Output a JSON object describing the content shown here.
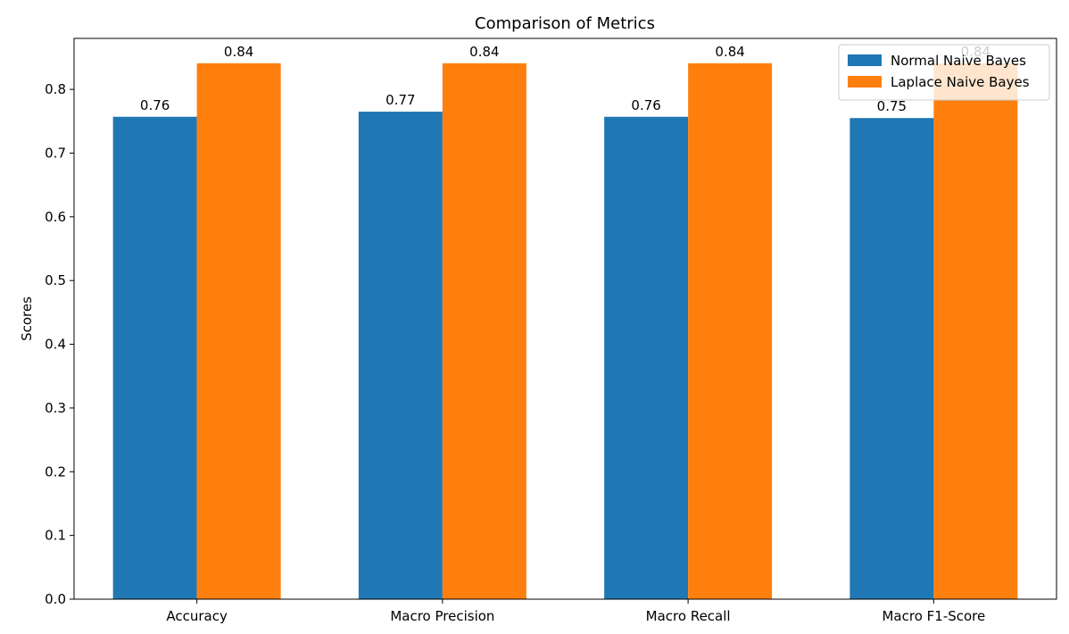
{
  "chart_data": {
    "type": "bar",
    "title": "Comparison of Metrics",
    "xlabel": "",
    "ylabel": "Scores",
    "categories": [
      "Accuracy",
      "Macro Precision",
      "Macro Recall",
      "Macro F1-Score"
    ],
    "series": [
      {
        "name": "Normal Naive Bayes",
        "color": "#1f77b4",
        "values": [
          0.757,
          0.765,
          0.757,
          0.755
        ],
        "labels": [
          "0.76",
          "0.77",
          "0.76",
          "0.75"
        ]
      },
      {
        "name": "Laplace Naive Bayes",
        "color": "#ff7f0e",
        "values": [
          0.841,
          0.841,
          0.841,
          0.841
        ],
        "labels": [
          "0.84",
          "0.84",
          "0.84",
          "0.84"
        ]
      }
    ],
    "ylim": [
      0,
      0.88
    ],
    "yticks": [
      "0.0",
      "0.1",
      "0.2",
      "0.3",
      "0.4",
      "0.5",
      "0.6",
      "0.7",
      "0.8"
    ],
    "grid": false,
    "legend_position": "top-right"
  }
}
